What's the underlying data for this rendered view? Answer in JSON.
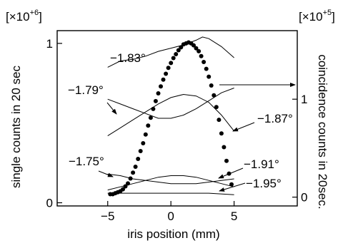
{
  "chart_data": {
    "type": "scatter",
    "xlabel": "iris position (mm)",
    "ylabel_left": "single counts in 20 sec",
    "ylabel_right": "coincidence counts in 20sec.",
    "multiplier_left": "[×10",
    "multiplier_left_exp": "+6",
    "multiplier_left_close": "]",
    "multiplier_right": "[×10",
    "multiplier_right_exp": "+5",
    "multiplier_right_close": "]",
    "xlim": [
      -9,
      10
    ],
    "ylim_left": [
      -0.02,
      1.08
    ],
    "ylim_right": [
      -0.09,
      1.7
    ],
    "x_ticks": [
      {
        "value": -5,
        "label": "−5"
      },
      {
        "value": 0,
        "label": "0"
      },
      {
        "value": 5,
        "label": "5"
      }
    ],
    "y_ticks_left": [
      {
        "value": 0,
        "label": "0"
      },
      {
        "value": 1,
        "label": "1"
      }
    ],
    "y_ticks_right": [
      {
        "value": 0,
        "label": "0"
      },
      {
        "value": 1,
        "label": "1"
      }
    ],
    "coincidence_points": {
      "axis": "right",
      "x": [
        -4.8,
        -4.6,
        -4.4,
        -4.2,
        -4.0,
        -3.8,
        -3.6,
        -3.4,
        -3.2,
        -3.0,
        -2.8,
        -2.6,
        -2.4,
        -2.2,
        -2.0,
        -1.8,
        -1.6,
        -1.4,
        -1.2,
        -1.0,
        -0.8,
        -0.6,
        -0.4,
        -0.2,
        0.0,
        0.2,
        0.4,
        0.6,
        0.8,
        1.0,
        1.2,
        1.4,
        1.6,
        1.8,
        2.0,
        2.2,
        2.4,
        2.6,
        2.8,
        3.0,
        3.2,
        3.4,
        3.6,
        3.8,
        4.0,
        4.2,
        4.4,
        4.6,
        4.8
      ],
      "y": [
        0.03,
        0.03,
        0.04,
        0.05,
        0.06,
        0.08,
        0.11,
        0.14,
        0.19,
        0.25,
        0.31,
        0.39,
        0.47,
        0.55,
        0.64,
        0.73,
        0.81,
        0.9,
        0.98,
        1.06,
        1.13,
        1.2,
        1.26,
        1.32,
        1.37,
        1.42,
        1.46,
        1.5,
        1.53,
        1.56,
        1.57,
        1.58,
        1.57,
        1.55,
        1.52,
        1.49,
        1.44,
        1.38,
        1.31,
        1.23,
        1.14,
        1.04,
        0.92,
        0.79,
        0.65,
        0.51,
        0.37,
        0.24,
        0.13
      ]
    },
    "series": [
      {
        "name": "−1.83°",
        "axis": "left",
        "x": [
          -5,
          -4,
          -3,
          -2,
          -1,
          0,
          1,
          2,
          2.5,
          3,
          4,
          5
        ],
        "y": [
          0.85,
          0.89,
          0.9,
          0.92,
          0.95,
          0.97,
          0.99,
          1.02,
          1.04,
          1.03,
          0.98,
          0.91
        ]
      },
      {
        "name": "−1.79°",
        "axis": "left",
        "x": [
          -5,
          -4,
          -3,
          -2,
          -1,
          0,
          1,
          2,
          3,
          4,
          5
        ],
        "y": [
          0.65,
          0.62,
          0.59,
          0.56,
          0.53,
          0.53,
          0.55,
          0.59,
          0.64,
          0.69,
          0.72
        ]
      },
      {
        "name": "−1.87°",
        "axis": "left",
        "x": [
          -5,
          -4,
          -3,
          -2,
          -1,
          0,
          1,
          2,
          3,
          4,
          5
        ],
        "y": [
          0.42,
          0.47,
          0.52,
          0.57,
          0.62,
          0.66,
          0.68,
          0.67,
          0.63,
          0.55,
          0.45
        ]
      },
      {
        "name": "−1.75°",
        "axis": "left",
        "x": [
          -5,
          -4,
          -3,
          -2,
          -1,
          0,
          1,
          2,
          3,
          4,
          5
        ],
        "y": [
          0.18,
          0.17,
          0.15,
          0.14,
          0.13,
          0.12,
          0.12,
          0.12,
          0.13,
          0.14,
          0.15
        ]
      },
      {
        "name": "−1.91°",
        "axis": "left",
        "x": [
          -5,
          -4,
          -3,
          -2,
          -1,
          0,
          1,
          2,
          3,
          4,
          5
        ],
        "y": [
          0.08,
          0.1,
          0.12,
          0.14,
          0.16,
          0.17,
          0.17,
          0.16,
          0.14,
          0.12,
          0.1
        ]
      },
      {
        "name": "−1.95°",
        "axis": "left",
        "x": [
          -5,
          -3,
          -1,
          1,
          3,
          5
        ],
        "y": [
          0.06,
          0.06,
          0.06,
          0.06,
          0.06,
          0.05
        ]
      }
    ],
    "annotations": [
      {
        "text": "−1.83°",
        "target": "single-curve-1"
      },
      {
        "text": "−1.79°",
        "target": "single-curve-2"
      },
      {
        "text": "−1.87°",
        "target": "single-curve-3"
      },
      {
        "text": "−1.75°",
        "target": "single-curve-4"
      },
      {
        "text": "−1.91°",
        "target": "single-curve-5"
      },
      {
        "text": "−1.95°",
        "target": "single-curve-6"
      }
    ]
  }
}
